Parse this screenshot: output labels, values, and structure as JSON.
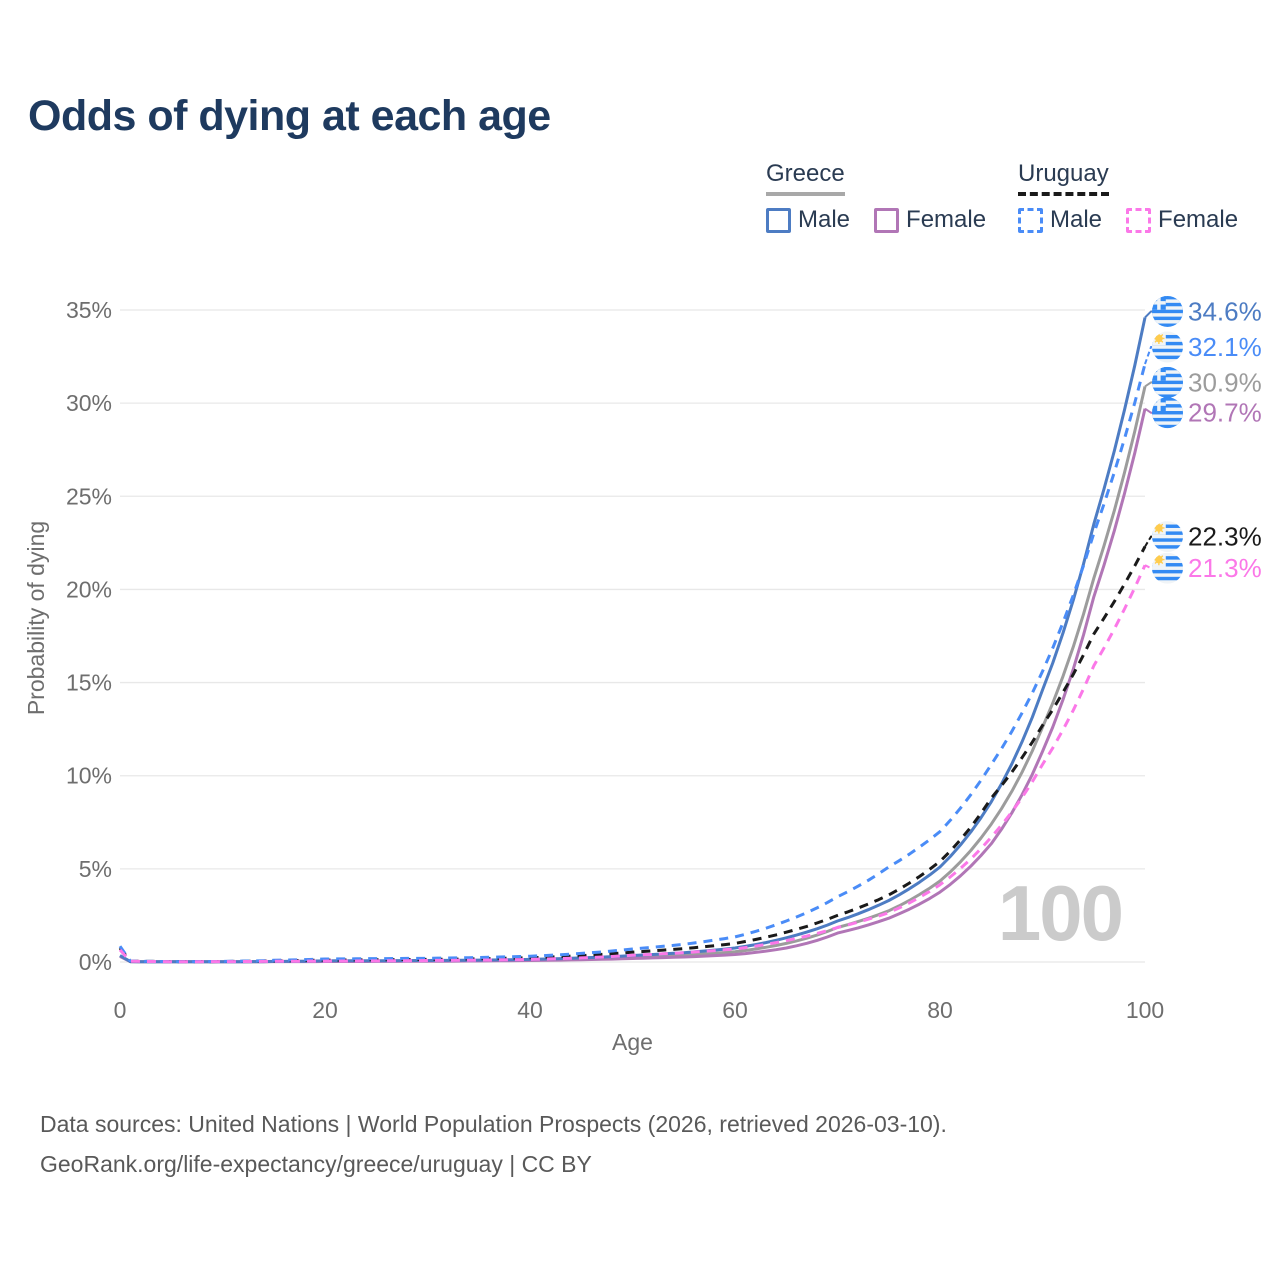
{
  "title": "Odds of dying at each age",
  "legend": {
    "groups": [
      {
        "country": "Greece",
        "line_style": "solid",
        "underline_color": "#a8a8a8",
        "items": [
          {
            "label": "Male",
            "color": "#4d7cc3"
          },
          {
            "label": "Female",
            "color": "#b176b6"
          }
        ]
      },
      {
        "country": "Uruguay",
        "line_style": "dashed",
        "underline_color": "#1a1a1a",
        "items": [
          {
            "label": "Male",
            "color": "#4a8cf7"
          },
          {
            "label": "Female",
            "color": "#fb78e8"
          }
        ]
      }
    ]
  },
  "y_axis": {
    "label": "Probability of dying",
    "ticks": [
      "35%",
      "30%",
      "25%",
      "20%",
      "15%",
      "10%",
      "5%",
      "0%"
    ]
  },
  "x_axis": {
    "label": "Age",
    "ticks": [
      "0",
      "20",
      "40",
      "60",
      "80",
      "100"
    ]
  },
  "watermark": "100",
  "footer": {
    "line1": "Data sources: United Nations | World Population Prospects (2026, retrieved 2026-03-10).",
    "line2": "GeoRank.org/life-expectancy/greece/uruguay | CC BY"
  },
  "chart_data": {
    "type": "line",
    "title": "Odds of dying at each age",
    "xlabel": "Age",
    "ylabel": "Probability of dying",
    "x_range": [
      0,
      100
    ],
    "y_range_percent": [
      0,
      35
    ],
    "grid": "horizontal",
    "legend_position": "top-right",
    "x": [
      0,
      1,
      5,
      10,
      15,
      20,
      25,
      30,
      35,
      40,
      45,
      50,
      55,
      60,
      65,
      70,
      75,
      80,
      85,
      90,
      95,
      100
    ],
    "series": [
      {
        "name": "Greece Male",
        "country": "Greece",
        "sex": "Male",
        "color": "#4d7cc3",
        "dash": "solid",
        "end_label": "34.6%",
        "end_value_pct": 34.6,
        "values_pct": [
          0.35,
          0.02,
          0.01,
          0.01,
          0.03,
          0.06,
          0.07,
          0.08,
          0.1,
          0.14,
          0.22,
          0.35,
          0.5,
          0.75,
          1.3,
          2.2,
          3.3,
          5.1,
          8.6,
          14.6,
          23.5,
          34.6
        ]
      },
      {
        "name": "Uruguay Male",
        "country": "Uruguay",
        "sex": "Male",
        "color": "#4a8cf7",
        "dash": "dashed",
        "end_label": "32.1%",
        "end_value_pct": 32.1,
        "values_pct": [
          0.85,
          0.05,
          0.02,
          0.03,
          0.09,
          0.16,
          0.18,
          0.2,
          0.24,
          0.31,
          0.46,
          0.7,
          0.95,
          1.35,
          2.2,
          3.5,
          5.1,
          7.0,
          10.6,
          15.6,
          23.0,
          32.1
        ]
      },
      {
        "name": "Greece",
        "country": "Greece",
        "sex": "Both",
        "color": "#9c9c9c",
        "dash": "solid",
        "end_label": "30.9%",
        "end_value_pct": 30.9,
        "values_pct": [
          0.33,
          0.02,
          0.01,
          0.01,
          0.025,
          0.04,
          0.05,
          0.06,
          0.08,
          0.11,
          0.17,
          0.27,
          0.38,
          0.55,
          1.0,
          1.85,
          2.75,
          4.35,
          7.4,
          12.6,
          20.6,
          30.9
        ]
      },
      {
        "name": "Greece Female",
        "country": "Greece",
        "sex": "Female",
        "color": "#b176b6",
        "dash": "solid",
        "end_label": "29.7%",
        "end_value_pct": 29.7,
        "values_pct": [
          0.3,
          0.02,
          0.01,
          0.01,
          0.02,
          0.025,
          0.03,
          0.04,
          0.055,
          0.08,
          0.12,
          0.19,
          0.27,
          0.4,
          0.75,
          1.55,
          2.35,
          3.75,
          6.35,
          11.3,
          19.6,
          29.7
        ]
      },
      {
        "name": "Uruguay",
        "country": "Uruguay",
        "sex": "Both",
        "color": "#1a1a1a",
        "dash": "dashed",
        "end_label": "22.3%",
        "end_value_pct": 22.3,
        "values_pct": [
          0.75,
          0.045,
          0.02,
          0.025,
          0.06,
          0.1,
          0.12,
          0.14,
          0.17,
          0.23,
          0.34,
          0.53,
          0.72,
          1.0,
          1.6,
          2.5,
          3.6,
          5.4,
          8.8,
          12.7,
          17.6,
          22.3
        ]
      },
      {
        "name": "Uruguay Female",
        "country": "Uruguay",
        "sex": "Female",
        "color": "#fb78e8",
        "dash": "dashed",
        "end_label": "21.3%",
        "end_value_pct": 21.3,
        "values_pct": [
          0.65,
          0.04,
          0.015,
          0.02,
          0.035,
          0.05,
          0.06,
          0.08,
          0.1,
          0.14,
          0.22,
          0.36,
          0.5,
          0.7,
          1.15,
          1.85,
          2.65,
          4.15,
          6.7,
          10.6,
          15.9,
          21.3
        ]
      }
    ]
  }
}
